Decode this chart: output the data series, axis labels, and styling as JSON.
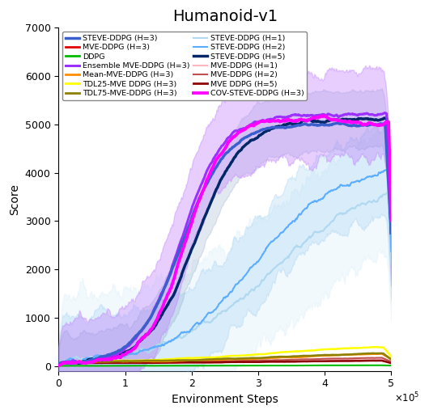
{
  "title": "Humanoid-v1",
  "xlabel": "Environment Steps",
  "ylabel": "Score",
  "xlim": [
    0,
    500000
  ],
  "ylim": [
    -100,
    7000
  ],
  "yticks": [
    0,
    1000,
    2000,
    3000,
    4000,
    5000,
    6000,
    7000
  ],
  "xticks": [
    0,
    100000,
    200000,
    300000,
    400000,
    500000
  ],
  "title_fontsize": 14,
  "axis_fontsize": 10,
  "tick_fontsize": 9,
  "legend_fontsize": 6.8,
  "colors": {
    "steve_h3": "#3a5fcd",
    "mve_h3": "#e00000",
    "ddpg": "#00bb00",
    "ensemble": "#9b30ff",
    "ensemble_shade": "#c080ff",
    "mean_mve": "#ff8c00",
    "tdl25": "#ffff00",
    "tdl75": "#8b8000",
    "steve_h1": "#b0d8f0",
    "steve_h1_shade": "#c8e8f8",
    "steve_h2": "#5aadff",
    "steve_h2_shade": "#90c8f0",
    "steve_h5": "#002868",
    "steve_h5_shade": "#7090b8",
    "mve_h1": "#ffb6c1",
    "mve_h2": "#c05050",
    "mve_h5": "#8b0000",
    "cov_steve": "#ff00ff"
  }
}
